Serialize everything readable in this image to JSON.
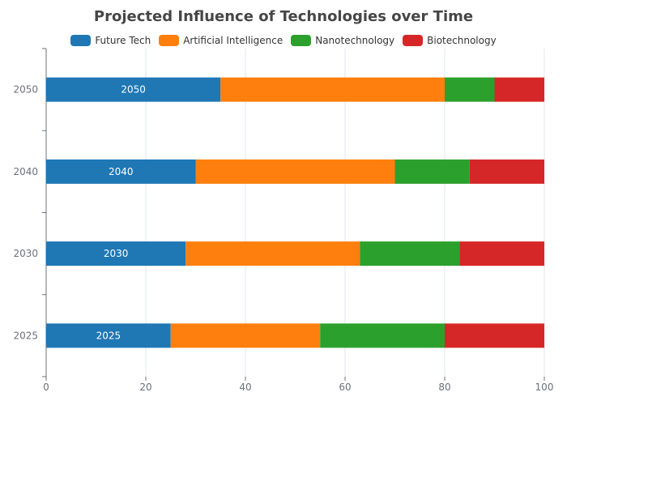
{
  "chart_data": {
    "type": "bar",
    "orientation": "horizontal",
    "stacked": true,
    "title": "Projected Influence of Technologies over Time",
    "categories": [
      "2025",
      "2030",
      "2040",
      "2050"
    ],
    "series": [
      {
        "name": "Future Tech",
        "color": "#1f77b4",
        "values": [
          25,
          28,
          30,
          35
        ],
        "show_labels": true
      },
      {
        "name": "Artificial Intelligence",
        "color": "#ff7f0e",
        "values": [
          30,
          35,
          40,
          45
        ],
        "show_labels": false
      },
      {
        "name": "Nanotechnology",
        "color": "#2ca02c",
        "values": [
          25,
          20,
          15,
          10
        ],
        "show_labels": false
      },
      {
        "name": "Biotechnology",
        "color": "#d62728",
        "values": [
          20,
          17,
          15,
          10
        ],
        "show_labels": false
      }
    ],
    "xlim": [
      0,
      100
    ],
    "x_ticks": [
      "0",
      "20",
      "40",
      "60",
      "80",
      "100"
    ],
    "grid": true,
    "legend_position": "top"
  }
}
